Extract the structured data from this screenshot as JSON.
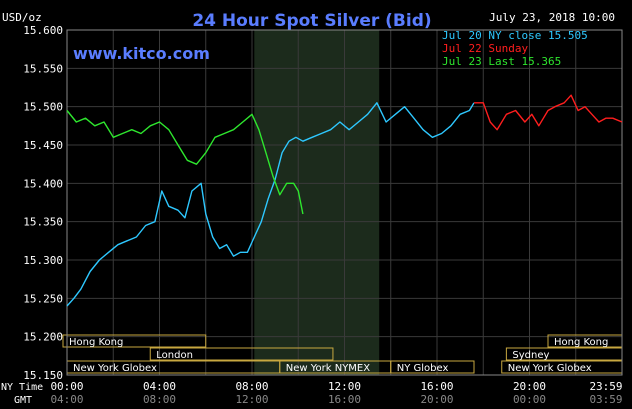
{
  "header": {
    "units": "USD/oz",
    "title": "24 Hour Spot Silver (Bid)",
    "date": "July 23, 2018 10:00",
    "watermark": "www.kitco.com"
  },
  "legend": [
    {
      "label": "Jul 20 NY close 15.505",
      "color": "#2ec8ff"
    },
    {
      "label": "Jul 22 Sunday",
      "color": "#ff1e1e"
    },
    {
      "label": "Jul 23 Last 15.365",
      "color": "#2ee62e"
    }
  ],
  "axis": {
    "ny_time_label": "NY Time",
    "gmt_label": "GMT",
    "ny_ticks": [
      "00:00",
      "04:00",
      "08:00",
      "12:00",
      "16:00",
      "20:00",
      "23:59"
    ],
    "gmt_ticks": [
      "04:00",
      "08:00",
      "12:00",
      "16:00",
      "20:00",
      "00:00",
      "03:59"
    ]
  },
  "sessions": [
    {
      "label": "Hong Kong",
      "row": 0,
      "start": -0.2,
      "end": 6.0
    },
    {
      "label": "London",
      "row": 1,
      "start": 3.6,
      "end": 11.5
    },
    {
      "label": "New York Globex",
      "row": 2,
      "start": 0.0,
      "end": 9.2
    },
    {
      "label": "New York NYMEX",
      "row": 2,
      "start": 9.2,
      "end": 14.0
    },
    {
      "label": "NY Globex",
      "row": 2,
      "start": 14.0,
      "end": 17.6
    },
    {
      "label": "Hong Kong",
      "row": 0,
      "start": 20.8,
      "end": 24.8
    },
    {
      "label": "Sydney",
      "row": 1,
      "start": 19.0,
      "end": 24.0
    },
    {
      "label": "New York Globex",
      "row": 2,
      "start": 18.8,
      "end": 24.8
    }
  ],
  "colors": {
    "background": "#000000",
    "grid": "#3a3a3a",
    "shade": "#1c2b1c",
    "axis_text": "#ffffff",
    "title": "#5a7dff",
    "session_border": "#c8a840",
    "session_text": "#ffffff"
  },
  "chart_data": {
    "type": "line",
    "xlabel": "NY Time",
    "ylabel": "USD/oz",
    "x_unit": "hours (NY Time)",
    "xlim": [
      0,
      24
    ],
    "ylim": [
      15.15,
      15.6
    ],
    "yticks": [
      "15.600",
      "15.550",
      "15.500",
      "15.450",
      "15.400",
      "15.350",
      "15.300",
      "15.250",
      "15.200",
      "15.150"
    ],
    "grid": true,
    "legend_position": "top-right",
    "shaded_range": [
      8.1,
      13.5
    ],
    "series": [
      {
        "name": "Jul 20 NY close 15.505",
        "color": "#2ec8ff",
        "x": [
          0,
          0.3,
          0.6,
          1,
          1.4,
          1.8,
          2.2,
          2.6,
          3,
          3.4,
          3.8,
          4.1,
          4.4,
          4.8,
          5.1,
          5.4,
          5.8,
          6.0,
          6.3,
          6.6,
          6.9,
          7.2,
          7.5,
          7.8,
          8.1,
          8.4,
          8.7,
          9,
          9.3,
          9.6,
          9.9,
          10.2,
          10.6,
          11,
          11.4,
          11.8,
          12.2,
          12.6,
          13,
          13.4,
          13.8,
          14.2,
          14.6,
          15,
          15.4,
          15.8,
          16.2,
          16.6,
          17,
          17.4,
          17.6
        ],
        "values": [
          15.24,
          15.25,
          15.262,
          15.285,
          15.3,
          15.31,
          15.32,
          15.325,
          15.33,
          15.345,
          15.35,
          15.39,
          15.37,
          15.365,
          15.355,
          15.39,
          15.4,
          15.36,
          15.33,
          15.315,
          15.32,
          15.305,
          15.31,
          15.31,
          15.33,
          15.35,
          15.38,
          15.405,
          15.44,
          15.455,
          15.46,
          15.455,
          15.46,
          15.465,
          15.47,
          15.48,
          15.47,
          15.48,
          15.49,
          15.505,
          15.48,
          15.49,
          15.5,
          15.485,
          15.47,
          15.46,
          15.465,
          15.475,
          15.49,
          15.495,
          15.505
        ]
      },
      {
        "name": "Jul 22 Sunday",
        "color": "#ff1e1e",
        "x": [
          17.6,
          18.0,
          18.3,
          18.6,
          19.0,
          19.4,
          19.8,
          20.1,
          20.4,
          20.8,
          21.1,
          21.5,
          21.8,
          22.1,
          22.4,
          22.7,
          23.0,
          23.3,
          23.6,
          24.0
        ],
        "values": [
          15.505,
          15.505,
          15.48,
          15.47,
          15.49,
          15.495,
          15.48,
          15.49,
          15.475,
          15.495,
          15.5,
          15.505,
          15.515,
          15.495,
          15.5,
          15.49,
          15.48,
          15.485,
          15.485,
          15.48
        ]
      },
      {
        "name": "Jul 23 Last 15.365",
        "color": "#2ee62e",
        "x": [
          0,
          0.4,
          0.8,
          1.2,
          1.6,
          2.0,
          2.4,
          2.8,
          3.2,
          3.6,
          4.0,
          4.4,
          4.8,
          5.2,
          5.6,
          6.0,
          6.4,
          6.8,
          7.2,
          7.6,
          8.0,
          8.3,
          8.6,
          8.9,
          9.2,
          9.5,
          9.8,
          10.0,
          10.2
        ],
        "values": [
          15.495,
          15.48,
          15.485,
          15.475,
          15.48,
          15.46,
          15.465,
          15.47,
          15.465,
          15.475,
          15.48,
          15.47,
          15.45,
          15.43,
          15.425,
          15.44,
          15.46,
          15.465,
          15.47,
          15.48,
          15.49,
          15.47,
          15.44,
          15.41,
          15.385,
          15.4,
          15.4,
          15.39,
          15.36
        ]
      }
    ]
  }
}
